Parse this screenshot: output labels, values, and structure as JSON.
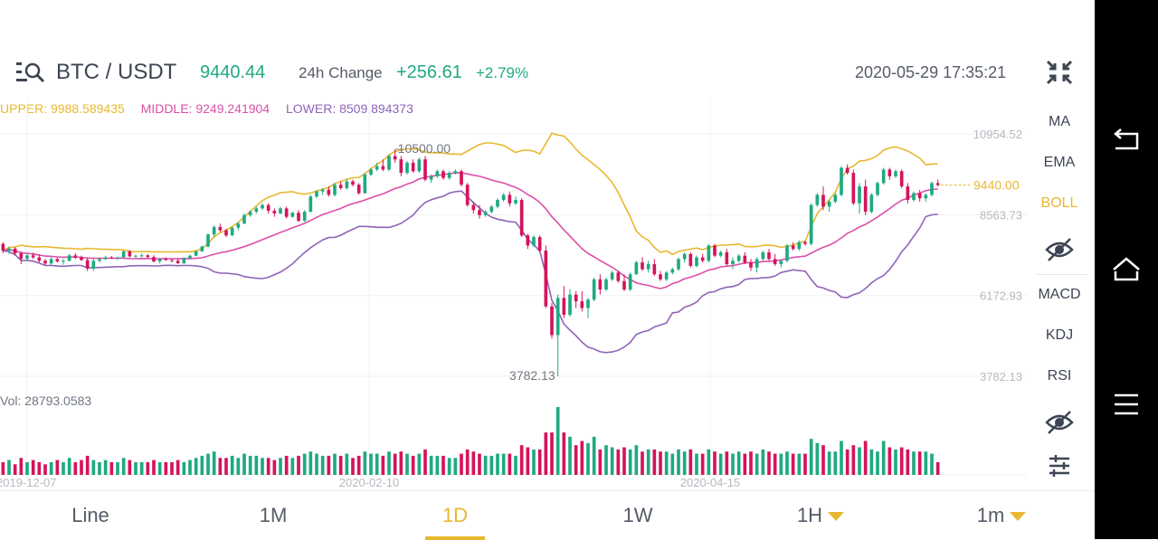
{
  "header": {
    "pair": "BTC / USDT",
    "price": "9440.44",
    "change_label": "24h Change",
    "change_abs": "+256.61",
    "change_pct": "+2.79%",
    "datetime": "2020-05-29 17:35:21",
    "logo_icon": "list-icon"
  },
  "bollinger": {
    "upper": "UPPER: 9988.589435",
    "middle": "MIDDLE: 9249.241904",
    "lower": "LOWER: 8509.894373",
    "colors": {
      "upper": "#e8b830",
      "middle": "#dd4fa8",
      "lower": "#8f64b8"
    }
  },
  "volume_label": "Vol: 28793.0583",
  "colors": {
    "up": "#1fa983",
    "down": "#d4145a",
    "upper": "#e8b830",
    "middle": "#dd4fa8",
    "lower": "#8f64b8"
  },
  "sidebar": {
    "items": [
      {
        "label": "MA",
        "active": false
      },
      {
        "label": "EMA",
        "active": false
      },
      {
        "label": "BOLL",
        "active": true
      },
      {
        "label": "MACD",
        "active": false
      },
      {
        "label": "KDJ",
        "active": false
      },
      {
        "label": "RSI",
        "active": false
      }
    ],
    "icons": [
      "collapse-icon",
      "eye-icon",
      "eye-icon",
      "settings-sliders-icon"
    ]
  },
  "tabs": [
    {
      "label": "Line",
      "active": false,
      "dropdown": false
    },
    {
      "label": "1M",
      "active": false,
      "dropdown": false
    },
    {
      "label": "1D",
      "active": true,
      "dropdown": false
    },
    {
      "label": "1W",
      "active": false,
      "dropdown": false
    },
    {
      "label": "1H",
      "active": false,
      "dropdown": true
    },
    {
      "label": "1m",
      "active": false,
      "dropdown": true
    }
  ],
  "navbar_icons": [
    "back-icon",
    "home-icon",
    "menu-icon"
  ],
  "chart_data": {
    "type": "candlestick",
    "y_ticks": [
      "10954.52",
      "8563.73",
      "6172.93",
      "3782.13"
    ],
    "x_ticks": [
      "2019-12-07",
      "2020-02-10",
      "2020-04-15"
    ],
    "annotations": {
      "high": "10500.00",
      "low": "3782.13",
      "last": "9440.00"
    },
    "ylim": [
      3782.13,
      10954.52
    ],
    "candles": [
      [
        7700,
        7750,
        7420,
        7500
      ],
      [
        7500,
        7620,
        7400,
        7560
      ],
      [
        7560,
        7600,
        7350,
        7420
      ],
      [
        7420,
        7480,
        7100,
        7260
      ],
      [
        7260,
        7400,
        7200,
        7360
      ],
      [
        7360,
        7440,
        7250,
        7300
      ],
      [
        7300,
        7380,
        7150,
        7200
      ],
      [
        7200,
        7250,
        7050,
        7120
      ],
      [
        7120,
        7300,
        7080,
        7250
      ],
      [
        7250,
        7300,
        7150,
        7180
      ],
      [
        7180,
        7250,
        7080,
        7200
      ],
      [
        7200,
        7400,
        7180,
        7360
      ],
      [
        7360,
        7420,
        7250,
        7300
      ],
      [
        7300,
        7350,
        7200,
        7220
      ],
      [
        7220,
        7300,
        6900,
        6970
      ],
      [
        6970,
        7300,
        6900,
        7200
      ],
      [
        7200,
        7300,
        7150,
        7250
      ],
      [
        7250,
        7350,
        7220,
        7300
      ],
      [
        7300,
        7340,
        7250,
        7280
      ],
      [
        7280,
        7320,
        7220,
        7300
      ],
      [
        7300,
        7500,
        7280,
        7480
      ],
      [
        7480,
        7520,
        7300,
        7330
      ],
      [
        7330,
        7380,
        7280,
        7350
      ],
      [
        7350,
        7420,
        7300,
        7360
      ],
      [
        7360,
        7400,
        7280,
        7310
      ],
      [
        7310,
        7360,
        7150,
        7180
      ],
      [
        7180,
        7260,
        7120,
        7250
      ],
      [
        7250,
        7300,
        7200,
        7220
      ],
      [
        7220,
        7260,
        7150,
        7200
      ],
      [
        7200,
        7260,
        7100,
        7130
      ],
      [
        7130,
        7300,
        7100,
        7280
      ],
      [
        7280,
        7380,
        7250,
        7350
      ],
      [
        7350,
        7500,
        7330,
        7480
      ],
      [
        7480,
        7650,
        7460,
        7620
      ],
      [
        7620,
        8000,
        7600,
        7980
      ],
      [
        7980,
        8250,
        7900,
        8200
      ],
      [
        8200,
        8300,
        8050,
        8100
      ],
      [
        8100,
        8150,
        7900,
        7950
      ],
      [
        7950,
        8200,
        7930,
        8180
      ],
      [
        8180,
        8350,
        8100,
        8300
      ],
      [
        8300,
        8600,
        8280,
        8550
      ],
      [
        8550,
        8700,
        8500,
        8650
      ],
      [
        8650,
        8800,
        8600,
        8750
      ],
      [
        8750,
        8900,
        8700,
        8850
      ],
      [
        8850,
        8900,
        8600,
        8680
      ],
      [
        8680,
        8750,
        8500,
        8600
      ],
      [
        8600,
        8800,
        8580,
        8750
      ],
      [
        8750,
        8800,
        8450,
        8500
      ],
      [
        8500,
        8650,
        8480,
        8620
      ],
      [
        8620,
        8700,
        8350,
        8380
      ],
      [
        8380,
        8700,
        8350,
        8650
      ],
      [
        8650,
        9150,
        8630,
        9100
      ],
      [
        9100,
        9300,
        9050,
        9250
      ],
      [
        9250,
        9350,
        9150,
        9300
      ],
      [
        9300,
        9400,
        9100,
        9150
      ],
      [
        9150,
        9500,
        9100,
        9450
      ],
      [
        9450,
        9550,
        9300,
        9350
      ],
      [
        9350,
        9600,
        9300,
        9550
      ],
      [
        9550,
        9600,
        9400,
        9450
      ],
      [
        9450,
        9500,
        9150,
        9200
      ],
      [
        9200,
        9800,
        9180,
        9750
      ],
      [
        9750,
        9950,
        9700,
        9900
      ],
      [
        9900,
        10100,
        9850,
        10000
      ],
      [
        10000,
        10200,
        9850,
        9900
      ],
      [
        9900,
        10350,
        9850,
        10300
      ],
      [
        10300,
        10500,
        10100,
        10200
      ],
      [
        10200,
        10300,
        9700,
        9800
      ],
      [
        9800,
        10150,
        9750,
        10100
      ],
      [
        10100,
        10200,
        9800,
        9850
      ],
      [
        9850,
        10250,
        9800,
        10200
      ],
      [
        10200,
        10300,
        9550,
        9600
      ],
      [
        9600,
        9750,
        9500,
        9700
      ],
      [
        9700,
        9900,
        9650,
        9850
      ],
      [
        9850,
        9900,
        9600,
        9650
      ],
      [
        9650,
        9850,
        9600,
        9800
      ],
      [
        9800,
        9900,
        9750,
        9850
      ],
      [
        9850,
        9900,
        9400,
        9450
      ],
      [
        9450,
        9500,
        8800,
        8850
      ],
      [
        8850,
        8950,
        8600,
        8700
      ],
      [
        8700,
        8850,
        8450,
        8550
      ],
      [
        8550,
        8700,
        8500,
        8650
      ],
      [
        8650,
        8850,
        8600,
        8800
      ],
      [
        8800,
        9050,
        8750,
        9000
      ],
      [
        9000,
        9200,
        8950,
        9150
      ],
      [
        9150,
        9250,
        8800,
        8900
      ],
      [
        8900,
        9100,
        8850,
        9000
      ],
      [
        9000,
        9050,
        7900,
        7950
      ],
      [
        7950,
        8000,
        7550,
        7650
      ],
      [
        7650,
        7950,
        7600,
        7900
      ],
      [
        7900,
        7950,
        7450,
        7500
      ],
      [
        7500,
        7650,
        5800,
        5850
      ],
      [
        5850,
        5950,
        4900,
        5000
      ],
      [
        5000,
        6200,
        3782,
        6100
      ],
      [
        6100,
        6450,
        5500,
        5600
      ],
      [
        5600,
        6350,
        5550,
        6200
      ],
      [
        6200,
        6300,
        5800,
        6000
      ],
      [
        6000,
        6300,
        5700,
        5800
      ],
      [
        5800,
        6100,
        5500,
        6050
      ],
      [
        6050,
        6700,
        6000,
        6650
      ],
      [
        6650,
        6800,
        6200,
        6350
      ],
      [
        6350,
        6700,
        6300,
        6650
      ],
      [
        6650,
        6900,
        6600,
        6850
      ],
      [
        6850,
        6900,
        6550,
        6600
      ],
      [
        6600,
        6800,
        6300,
        6350
      ],
      [
        6350,
        6850,
        6300,
        6800
      ],
      [
        6800,
        7200,
        6780,
        7150
      ],
      [
        7150,
        7300,
        6900,
        6950
      ],
      [
        6950,
        7200,
        6850,
        7100
      ],
      [
        7100,
        7250,
        6750,
        6800
      ],
      [
        6800,
        6900,
        6600,
        6650
      ],
      [
        6650,
        6900,
        6600,
        6850
      ],
      [
        6850,
        7000,
        6800,
        6950
      ],
      [
        6950,
        7300,
        6900,
        7250
      ],
      [
        7250,
        7450,
        7150,
        7400
      ],
      [
        7400,
        7450,
        7000,
        7050
      ],
      [
        7050,
        7350,
        7000,
        7300
      ],
      [
        7300,
        7400,
        7150,
        7200
      ],
      [
        7200,
        7700,
        7150,
        7650
      ],
      [
        7650,
        7700,
        7300,
        7350
      ],
      [
        7350,
        7500,
        7300,
        7450
      ],
      [
        7450,
        7550,
        7050,
        7100
      ],
      [
        7100,
        7300,
        6950,
        7200
      ],
      [
        7200,
        7400,
        7150,
        7350
      ],
      [
        7350,
        7450,
        7100,
        7150
      ],
      [
        7150,
        7250,
        6900,
        7000
      ],
      [
        7000,
        7300,
        6850,
        7250
      ],
      [
        7250,
        7500,
        7200,
        7450
      ],
      [
        7450,
        7550,
        7200,
        7250
      ],
      [
        7250,
        7400,
        7050,
        7100
      ],
      [
        7100,
        7250,
        7000,
        7200
      ],
      [
        7200,
        7700,
        7150,
        7650
      ],
      [
        7650,
        7750,
        7500,
        7550
      ],
      [
        7550,
        7800,
        7500,
        7750
      ],
      [
        7750,
        7800,
        7650,
        7700
      ],
      [
        7700,
        8900,
        7650,
        8850
      ],
      [
        8850,
        9200,
        8800,
        9150
      ],
      [
        9150,
        9400,
        8700,
        8800
      ],
      [
        8800,
        9000,
        8650,
        8950
      ],
      [
        8950,
        9200,
        8900,
        9150
      ],
      [
        9150,
        10000,
        9100,
        9950
      ],
      [
        9950,
        10050,
        9750,
        9800
      ],
      [
        9800,
        9900,
        8850,
        8900
      ],
      [
        8900,
        9500,
        8600,
        9400
      ],
      [
        9400,
        9600,
        8550,
        8650
      ],
      [
        8650,
        9200,
        8600,
        9150
      ],
      [
        9150,
        9550,
        9100,
        9500
      ],
      [
        9500,
        9950,
        9450,
        9900
      ],
      [
        9900,
        9950,
        9600,
        9700
      ],
      [
        9700,
        9900,
        9650,
        9850
      ],
      [
        9850,
        9900,
        9350,
        9400
      ],
      [
        9400,
        9500,
        8900,
        9000
      ],
      [
        9000,
        9250,
        8950,
        9200
      ],
      [
        9200,
        9300,
        8950,
        9050
      ],
      [
        9050,
        9200,
        8950,
        9150
      ],
      [
        9150,
        9550,
        9100,
        9500
      ],
      [
        9500,
        9600,
        9400,
        9440
      ]
    ],
    "volume": [
      0.3,
      0.35,
      0.25,
      0.4,
      0.3,
      0.35,
      0.3,
      0.25,
      0.3,
      0.35,
      0.3,
      0.4,
      0.3,
      0.35,
      0.45,
      0.35,
      0.3,
      0.35,
      0.3,
      0.3,
      0.4,
      0.35,
      0.3,
      0.3,
      0.3,
      0.35,
      0.3,
      0.3,
      0.3,
      0.35,
      0.3,
      0.35,
      0.4,
      0.45,
      0.5,
      0.55,
      0.4,
      0.4,
      0.45,
      0.4,
      0.5,
      0.45,
      0.45,
      0.4,
      0.4,
      0.35,
      0.4,
      0.45,
      0.4,
      0.45,
      0.5,
      0.55,
      0.5,
      0.45,
      0.45,
      0.5,
      0.45,
      0.5,
      0.4,
      0.45,
      0.55,
      0.5,
      0.5,
      0.45,
      0.55,
      0.5,
      0.55,
      0.5,
      0.45,
      0.5,
      0.6,
      0.45,
      0.45,
      0.45,
      0.4,
      0.4,
      0.5,
      0.6,
      0.55,
      0.5,
      0.45,
      0.45,
      0.5,
      0.5,
      0.5,
      0.45,
      0.7,
      0.65,
      0.6,
      0.6,
      1.0,
      1.0,
      1.6,
      1.0,
      0.9,
      0.7,
      0.8,
      0.75,
      0.9,
      0.6,
      0.7,
      0.65,
      0.6,
      0.65,
      0.6,
      0.7,
      0.55,
      0.6,
      0.6,
      0.55,
      0.55,
      0.5,
      0.6,
      0.55,
      0.6,
      0.5,
      0.5,
      0.6,
      0.55,
      0.5,
      0.55,
      0.5,
      0.55,
      0.5,
      0.55,
      0.5,
      0.6,
      0.55,
      0.5,
      0.5,
      0.55,
      0.5,
      0.5,
      0.5,
      0.85,
      0.75,
      0.7,
      0.55,
      0.55,
      0.8,
      0.6,
      0.7,
      0.65,
      0.8,
      0.6,
      0.55,
      0.8,
      0.65,
      0.6,
      0.65,
      0.6,
      0.55,
      0.55,
      0.55,
      0.5,
      0.3
    ]
  }
}
